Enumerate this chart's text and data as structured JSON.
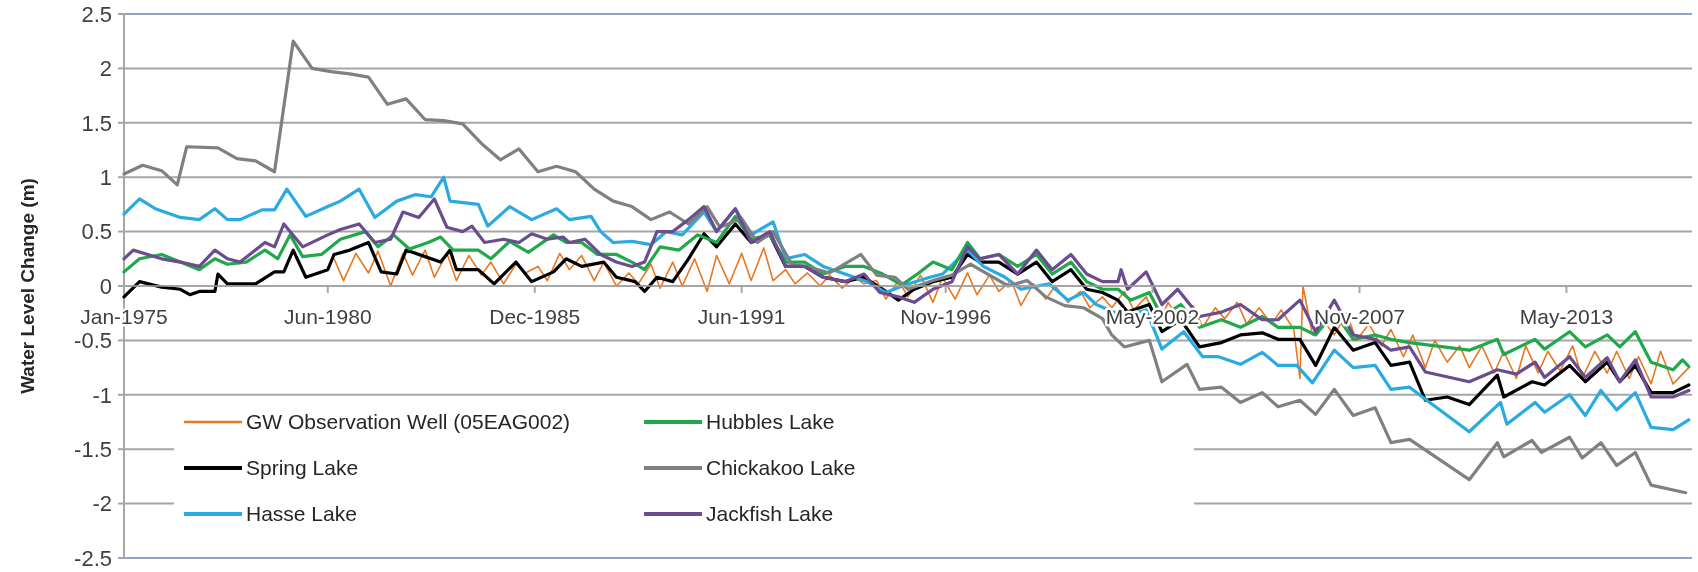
{
  "chart_data": {
    "type": "line",
    "ylabel": "Water Level Change (m)",
    "xlim": [
      "1975-01",
      "2016-09"
    ],
    "xticks": [
      {
        "value": "1975-01",
        "label": "Jan-1975"
      },
      {
        "value": "1980-06",
        "label": "Jun-1980"
      },
      {
        "value": "1985-12",
        "label": "Dec-1985"
      },
      {
        "value": "1991-06",
        "label": "Jun-1991"
      },
      {
        "value": "1996-11",
        "label": "Nov-1996"
      },
      {
        "value": "2002-05",
        "label": "May-2002"
      },
      {
        "value": "2007-11",
        "label": "Nov-2007"
      },
      {
        "value": "2013-05",
        "label": "May-2013"
      }
    ],
    "ylim": [
      -2.5,
      2.5
    ],
    "yticks": [
      -2.5,
      -2,
      -1.5,
      -1,
      -0.5,
      0,
      0.5,
      1,
      1.5,
      2,
      2.5
    ],
    "grid": "y",
    "legend": "bottom left",
    "line_style": "solid",
    "marker": "none",
    "series": [
      {
        "name": "GW Observation Well (05EAG002)",
        "color": "#e87722",
        "x": [
          "1980-08",
          "1980-11",
          "1981-03",
          "1981-07",
          "1981-10",
          "1982-02",
          "1982-06",
          "1982-09",
          "1983-01",
          "1983-04",
          "1983-08",
          "1983-11",
          "1984-03",
          "1984-07",
          "1984-10",
          "1985-02",
          "1985-06",
          "1985-09",
          "1986-01",
          "1986-04",
          "1986-08",
          "1986-11",
          "1987-03",
          "1987-07",
          "1987-10",
          "1988-02",
          "1988-06",
          "1988-09",
          "1989-01",
          "1989-04",
          "1989-08",
          "1989-11",
          "1990-03",
          "1990-07",
          "1990-10",
          "1991-02",
          "1991-06",
          "1991-09",
          "1992-01",
          "1992-04",
          "1992-08",
          "1992-11",
          "1993-03",
          "1993-07",
          "1993-10",
          "1994-02",
          "1994-06",
          "1994-09",
          "1995-01",
          "1995-04",
          "1995-08",
          "1995-11",
          "1996-03",
          "1996-07",
          "1996-10",
          "1997-02",
          "1997-06",
          "1997-09",
          "1998-01",
          "1998-04",
          "1998-08",
          "1998-11",
          "1999-03",
          "1999-07",
          "1999-10",
          "2000-02",
          "2000-06",
          "2000-09",
          "2001-01",
          "2001-04",
          "2001-08",
          "2001-11",
          "2002-03",
          "2002-07",
          "2002-10",
          "2003-02",
          "2003-06",
          "2003-09",
          "2004-01",
          "2004-04",
          "2004-08",
          "2004-11",
          "2005-03",
          "2005-07",
          "2005-10",
          "2006-02",
          "2006-04",
          "2006-05",
          "2006-08",
          "2006-11",
          "2007-03",
          "2007-07",
          "2007-10",
          "2008-02",
          "2008-06",
          "2008-09",
          "2009-01",
          "2009-04",
          "2009-08",
          "2009-11",
          "2010-03",
          "2010-07",
          "2010-10",
          "2011-02",
          "2011-06",
          "2011-09",
          "2012-01",
          "2012-04",
          "2012-08",
          "2012-11",
          "2013-03",
          "2013-07",
          "2013-10",
          "2014-02",
          "2014-06",
          "2014-09",
          "2015-01",
          "2015-04",
          "2015-08",
          "2015-11",
          "2016-03",
          "2016-08"
        ],
        "values": [
          0.25,
          0.05,
          0.3,
          0.12,
          0.32,
          0.0,
          0.3,
          0.1,
          0.33,
          0.08,
          0.3,
          0.05,
          0.28,
          0.1,
          0.22,
          0.02,
          0.2,
          0.12,
          0.18,
          0.05,
          0.3,
          0.15,
          0.28,
          0.05,
          0.22,
          0.0,
          0.12,
          0.02,
          0.2,
          -0.02,
          0.22,
          0.0,
          0.25,
          -0.05,
          0.28,
          0.02,
          0.3,
          0.05,
          0.35,
          0.05,
          0.15,
          0.02,
          0.12,
          0.0,
          0.1,
          -0.02,
          0.08,
          0.02,
          0.05,
          -0.12,
          0.05,
          -0.1,
          0.1,
          -0.15,
          0.08,
          -0.12,
          0.12,
          -0.08,
          0.1,
          -0.05,
          0.05,
          -0.18,
          0.02,
          -0.12,
          0.0,
          -0.15,
          -0.05,
          -0.2,
          -0.1,
          -0.2,
          -0.05,
          -0.22,
          -0.1,
          -0.35,
          -0.15,
          -0.35,
          -0.18,
          -0.38,
          -0.2,
          -0.3,
          -0.15,
          -0.35,
          -0.2,
          -0.35,
          -0.22,
          -0.4,
          -0.85,
          0.0,
          -0.45,
          -0.3,
          -0.45,
          -0.25,
          -0.5,
          -0.35,
          -0.55,
          -0.4,
          -0.65,
          -0.45,
          -0.75,
          -0.5,
          -0.7,
          -0.55,
          -0.75,
          -0.55,
          -0.8,
          -0.6,
          -0.85,
          -0.55,
          -0.8,
          -0.6,
          -0.78,
          -0.55,
          -0.85,
          -0.6,
          -0.8,
          -0.6,
          -0.85,
          -0.65,
          -0.9,
          -0.6,
          -0.9,
          -0.75
        ]
      },
      {
        "name": "Spring Lake",
        "color": "#000000",
        "x": [
          "1975-01",
          "1975-06",
          "1976-01",
          "1976-07",
          "1976-10",
          "1977-01",
          "1977-06",
          "1977-07",
          "1977-10",
          "1978-07",
          "1979-01",
          "1979-04",
          "1979-07",
          "1979-11",
          "1980-06",
          "1980-08",
          "1981-01",
          "1981-07",
          "1981-11",
          "1982-04",
          "1982-07",
          "1983-01",
          "1983-06",
          "1983-09",
          "1983-11",
          "1984-06",
          "1984-11",
          "1985-06",
          "1985-11",
          "1986-06",
          "1986-10",
          "1987-03",
          "1987-10",
          "1988-02",
          "1988-08",
          "1988-11",
          "1989-03",
          "1989-08",
          "1990-01",
          "1990-06",
          "1990-10",
          "1991-04",
          "1991-09",
          "1992-03",
          "1992-08",
          "1993-02",
          "1993-08",
          "1994-03",
          "1994-09",
          "1995-03",
          "1995-08",
          "1996-01",
          "1996-07",
          "1997-01",
          "1997-06",
          "1997-10",
          "1998-04",
          "1998-10",
          "1999-04",
          "1999-09",
          "2000-03",
          "2000-08",
          "2001-01",
          "2001-06",
          "2001-09",
          "2002-04",
          "2002-08",
          "2003-02",
          "2003-08",
          "2004-03",
          "2004-09",
          "2005-04",
          "2005-09",
          "2006-04",
          "2006-09",
          "2007-03",
          "2007-09",
          "2008-04",
          "2008-09",
          "2009-03",
          "2009-08",
          "2010-03",
          "2010-10",
          "2011-07",
          "2011-09",
          "2012-06",
          "2012-10",
          "2013-06",
          "2013-11",
          "2014-06",
          "2014-10",
          "2015-03",
          "2015-08",
          "2016-03",
          "2016-08"
        ],
        "values": [
          -0.1,
          0.04,
          -0.01,
          -0.03,
          -0.08,
          -0.05,
          -0.05,
          0.11,
          0.02,
          0.02,
          0.13,
          0.13,
          0.33,
          0.08,
          0.15,
          0.29,
          0.33,
          0.4,
          0.13,
          0.11,
          0.33,
          0.27,
          0.22,
          0.33,
          0.15,
          0.15,
          0.02,
          0.22,
          0.04,
          0.13,
          0.25,
          0.18,
          0.22,
          0.08,
          0.04,
          -0.05,
          0.08,
          0.04,
          0.25,
          0.48,
          0.36,
          0.57,
          0.4,
          0.47,
          0.18,
          0.18,
          0.08,
          0.04,
          0.08,
          -0.03,
          -0.13,
          -0.03,
          0.04,
          0.08,
          0.29,
          0.22,
          0.22,
          0.11,
          0.22,
          0.04,
          0.15,
          -0.03,
          -0.06,
          -0.13,
          -0.24,
          -0.17,
          -0.42,
          -0.31,
          -0.56,
          -0.52,
          -0.45,
          -0.43,
          -0.49,
          -0.49,
          -0.73,
          -0.38,
          -0.59,
          -0.52,
          -0.73,
          -0.7,
          -1.05,
          -1.02,
          -1.09,
          -0.82,
          -1.02,
          -0.88,
          -0.91,
          -0.73,
          -0.88,
          -0.7,
          -0.88,
          -0.73,
          -0.98,
          -0.98,
          -0.91
        ]
      },
      {
        "name": "Hasse Lake",
        "color": "#29abe2",
        "x": [
          "1975-01",
          "1975-06",
          "1975-11",
          "1976-07",
          "1977-01",
          "1977-06",
          "1977-10",
          "1978-02",
          "1978-09",
          "1979-01",
          "1979-05",
          "1979-11",
          "1980-06",
          "1980-10",
          "1981-04",
          "1981-09",
          "1982-04",
          "1982-10",
          "1983-03",
          "1983-07",
          "1983-09",
          "1984-06",
          "1984-09",
          "1985-04",
          "1985-11",
          "1986-07",
          "1986-11",
          "1987-06",
          "1987-09",
          "1988-01",
          "1988-07",
          "1989-01",
          "1989-06",
          "1989-11",
          "1990-06",
          "1990-10",
          "1991-04",
          "1991-09",
          "1992-04",
          "1992-08",
          "1993-02",
          "1993-08",
          "1994-03",
          "1994-10",
          "1995-04",
          "1995-10",
          "1996-06",
          "1996-10",
          "1997-06",
          "1997-11",
          "1998-06",
          "1998-11",
          "1999-08",
          "2000-02",
          "2000-07",
          "2000-11",
          "2001-08",
          "2002-03",
          "2002-08",
          "2003-03",
          "2003-09",
          "2004-02",
          "2004-09",
          "2005-04",
          "2005-09",
          "2006-03",
          "2006-08",
          "2007-03",
          "2007-09",
          "2008-04",
          "2008-09",
          "2009-03",
          "2009-08",
          "2010-10",
          "2011-08",
          "2011-10",
          "2012-07",
          "2012-10",
          "2013-06",
          "2013-11",
          "2014-04",
          "2014-09",
          "2015-03",
          "2015-08",
          "2016-03",
          "2016-08"
        ],
        "values": [
          0.66,
          0.8,
          0.71,
          0.63,
          0.61,
          0.71,
          0.61,
          0.61,
          0.7,
          0.7,
          0.89,
          0.64,
          0.73,
          0.78,
          0.89,
          0.63,
          0.78,
          0.84,
          0.82,
          1.0,
          0.78,
          0.75,
          0.55,
          0.73,
          0.61,
          0.71,
          0.61,
          0.64,
          0.5,
          0.4,
          0.41,
          0.38,
          0.5,
          0.47,
          0.68,
          0.5,
          0.71,
          0.47,
          0.59,
          0.25,
          0.29,
          0.18,
          0.11,
          0.04,
          -0.06,
          0.01,
          0.08,
          0.11,
          0.33,
          0.18,
          0.08,
          -0.03,
          0.02,
          -0.13,
          -0.06,
          -0.17,
          -0.28,
          -0.22,
          -0.58,
          -0.42,
          -0.65,
          -0.65,
          -0.72,
          -0.61,
          -0.73,
          -0.73,
          -0.89,
          -0.59,
          -0.75,
          -0.73,
          -0.95,
          -0.93,
          -1.04,
          -1.34,
          -1.07,
          -1.27,
          -1.07,
          -1.16,
          -1.0,
          -1.19,
          -0.96,
          -1.14,
          -0.98,
          -1.3,
          -1.32,
          -1.23
        ]
      },
      {
        "name": "Hubbles Lake",
        "color": "#21a84a",
        "x": [
          "1975-01",
          "1975-06",
          "1976-01",
          "1976-07",
          "1977-01",
          "1977-06",
          "1977-10",
          "1978-04",
          "1978-10",
          "1979-02",
          "1979-06",
          "1979-10",
          "1980-04",
          "1980-10",
          "1981-06",
          "1981-10",
          "1982-03",
          "1982-08",
          "1983-02",
          "1983-06",
          "1983-10",
          "1984-06",
          "1984-10",
          "1985-04",
          "1985-10",
          "1986-06",
          "1986-10",
          "1987-03",
          "1987-08",
          "1988-02",
          "1988-07",
          "1988-11",
          "1989-04",
          "1989-10",
          "1990-04",
          "1990-10",
          "1991-04",
          "1991-09",
          "1992-03",
          "1992-08",
          "1993-02",
          "1993-08",
          "1994-03",
          "1994-09",
          "1995-03",
          "1995-09",
          "1996-02",
          "1996-07",
          "1997-01",
          "1997-06",
          "1997-10",
          "1998-04",
          "1998-10",
          "1999-04",
          "1999-09",
          "2000-03",
          "2000-08",
          "2001-01",
          "2001-06",
          "2001-10",
          "2002-04",
          "2002-08",
          "2003-02",
          "2003-08",
          "2004-03",
          "2004-09",
          "2005-04",
          "2005-09",
          "2006-04",
          "2006-09",
          "2007-03",
          "2007-09",
          "2008-04",
          "2008-09",
          "2009-03",
          "2010-10",
          "2011-07",
          "2011-09",
          "2012-07",
          "2012-10",
          "2013-06",
          "2013-11",
          "2014-06",
          "2014-10",
          "2015-03",
          "2015-08",
          "2016-03",
          "2016-06",
          "2016-08"
        ],
        "values": [
          0.13,
          0.25,
          0.29,
          0.22,
          0.15,
          0.25,
          0.2,
          0.22,
          0.33,
          0.25,
          0.47,
          0.27,
          0.29,
          0.43,
          0.5,
          0.36,
          0.47,
          0.34,
          0.4,
          0.45,
          0.33,
          0.33,
          0.25,
          0.41,
          0.31,
          0.47,
          0.4,
          0.4,
          0.29,
          0.29,
          0.22,
          0.15,
          0.36,
          0.33,
          0.47,
          0.4,
          0.64,
          0.43,
          0.47,
          0.22,
          0.22,
          0.11,
          0.18,
          0.18,
          0.11,
          0.01,
          0.11,
          0.22,
          0.15,
          0.4,
          0.25,
          0.29,
          0.18,
          0.29,
          0.11,
          0.22,
          0.04,
          -0.03,
          -0.03,
          -0.13,
          -0.06,
          -0.28,
          -0.17,
          -0.38,
          -0.31,
          -0.38,
          -0.28,
          -0.38,
          -0.38,
          -0.45,
          -0.24,
          -0.49,
          -0.45,
          -0.49,
          -0.52,
          -0.59,
          -0.49,
          -0.63,
          -0.49,
          -0.58,
          -0.42,
          -0.56,
          -0.45,
          -0.56,
          -0.42,
          -0.7,
          -0.77,
          -0.68,
          -0.74
        ]
      },
      {
        "name": "Chickakoo Lake",
        "color": "#808080",
        "x": [
          "1975-01",
          "1975-07",
          "1976-01",
          "1976-06",
          "1976-09",
          "1977-07",
          "1978-01",
          "1978-07",
          "1979-01",
          "1979-07",
          "1980-01",
          "1980-07",
          "1981-01",
          "1981-07",
          "1982-01",
          "1982-07",
          "1983-01",
          "1983-07",
          "1984-01",
          "1984-07",
          "1985-01",
          "1985-07",
          "1986-01",
          "1986-07",
          "1987-01",
          "1987-07",
          "1988-01",
          "1988-07",
          "1989-01",
          "1989-07",
          "1990-01",
          "1990-07",
          "1990-11",
          "1991-06",
          "1991-11",
          "1992-04",
          "1992-10",
          "1993-04",
          "1993-10",
          "1994-08",
          "1995-01",
          "1995-07",
          "1995-11",
          "1996-07",
          "1997-01",
          "1997-07",
          "1998-01",
          "1998-07",
          "1999-01",
          "1999-07",
          "2000-01",
          "2000-07",
          "2001-01",
          "2001-04",
          "2001-08",
          "2002-04",
          "2002-08",
          "2003-04",
          "2003-08",
          "2004-03",
          "2004-09",
          "2005-04",
          "2005-09",
          "2006-04",
          "2006-09",
          "2007-03",
          "2007-09",
          "2008-04",
          "2008-09",
          "2009-03",
          "2010-10",
          "2011-07",
          "2011-09",
          "2012-06",
          "2012-09",
          "2013-06",
          "2013-10",
          "2014-04",
          "2014-09",
          "2015-03",
          "2015-08",
          "2016-07"
        ],
        "values": [
          1.03,
          1.11,
          1.06,
          0.93,
          1.28,
          1.27,
          1.17,
          1.15,
          1.05,
          2.25,
          2.0,
          1.97,
          1.95,
          1.92,
          1.67,
          1.72,
          1.53,
          1.52,
          1.49,
          1.31,
          1.16,
          1.26,
          1.05,
          1.1,
          1.05,
          0.89,
          0.78,
          0.73,
          0.61,
          0.68,
          0.57,
          0.73,
          0.54,
          0.62,
          0.4,
          0.5,
          0.2,
          0.17,
          0.12,
          0.29,
          0.1,
          0.08,
          -0.03,
          0.05,
          0.1,
          0.2,
          0.1,
          0.0,
          0.05,
          -0.1,
          -0.18,
          -0.2,
          -0.3,
          -0.45,
          -0.56,
          -0.5,
          -0.88,
          -0.72,
          -0.95,
          -0.93,
          -1.07,
          -0.98,
          -1.11,
          -1.05,
          -1.18,
          -0.95,
          -1.19,
          -1.12,
          -1.44,
          -1.41,
          -1.78,
          -1.44,
          -1.57,
          -1.42,
          -1.53,
          -1.39,
          -1.58,
          -1.44,
          -1.65,
          -1.53,
          -1.83,
          -1.9
        ]
      },
      {
        "name": "Jackfish Lake",
        "color": "#6a4c8f",
        "x": [
          "1975-01",
          "1975-04",
          "1976-01",
          "1976-07",
          "1977-01",
          "1977-06",
          "1977-10",
          "1978-02",
          "1978-10",
          "1979-01",
          "1979-04",
          "1979-10",
          "1980-06",
          "1980-10",
          "1981-04",
          "1981-09",
          "1982-02",
          "1982-06",
          "1982-11",
          "1983-04",
          "1983-08",
          "1984-01",
          "1984-04",
          "1984-08",
          "1985-02",
          "1985-07",
          "1985-11",
          "1986-04",
          "1986-09",
          "1986-11",
          "1987-04",
          "1987-09",
          "1988-02",
          "1988-07",
          "1988-11",
          "1989-03",
          "1989-08",
          "1990-01",
          "1990-06",
          "1990-10",
          "1991-04",
          "1991-09",
          "1992-03",
          "1992-08",
          "1993-02",
          "1993-08",
          "1994-03",
          "1994-09",
          "1995-02",
          "1995-08",
          "1996-01",
          "1996-07",
          "1997-01",
          "1997-06",
          "1997-10",
          "1998-04",
          "1998-10",
          "1999-04",
          "1999-09",
          "2000-03",
          "2000-08",
          "2001-01",
          "2001-06",
          "2001-07",
          "2001-09",
          "2002-03",
          "2002-08",
          "2003-01",
          "2003-08",
          "2004-03",
          "2004-09",
          "2005-04",
          "2005-09",
          "2006-04",
          "2006-09",
          "2007-03",
          "2007-09",
          "2008-04",
          "2008-09",
          "2009-03",
          "2009-08",
          "2010-10",
          "2011-07",
          "2012-01",
          "2012-07",
          "2012-10",
          "2013-06",
          "2013-11",
          "2014-06",
          "2014-10",
          "2015-03",
          "2015-08",
          "2016-03",
          "2016-08"
        ],
        "values": [
          0.25,
          0.33,
          0.25,
          0.22,
          0.18,
          0.33,
          0.25,
          0.22,
          0.4,
          0.36,
          0.57,
          0.36,
          0.47,
          0.52,
          0.57,
          0.4,
          0.43,
          0.68,
          0.63,
          0.8,
          0.54,
          0.5,
          0.55,
          0.4,
          0.43,
          0.4,
          0.48,
          0.43,
          0.45,
          0.4,
          0.43,
          0.29,
          0.22,
          0.18,
          0.22,
          0.5,
          0.5,
          0.61,
          0.73,
          0.5,
          0.71,
          0.4,
          0.5,
          0.18,
          0.18,
          0.08,
          0.04,
          0.11,
          -0.06,
          -0.1,
          -0.15,
          -0.03,
          0.04,
          0.36,
          0.25,
          0.29,
          0.11,
          0.33,
          0.15,
          0.29,
          0.11,
          0.04,
          0.04,
          0.15,
          -0.03,
          0.13,
          -0.17,
          -0.03,
          -0.28,
          -0.24,
          -0.17,
          -0.31,
          -0.31,
          -0.13,
          -0.42,
          -0.13,
          -0.45,
          -0.49,
          -0.59,
          -0.56,
          -0.79,
          -0.88,
          -0.77,
          -0.81,
          -0.7,
          -0.84,
          -0.65,
          -0.84,
          -0.66,
          -0.88,
          -0.68,
          -1.02,
          -1.02,
          -0.96
        ]
      }
    ]
  }
}
